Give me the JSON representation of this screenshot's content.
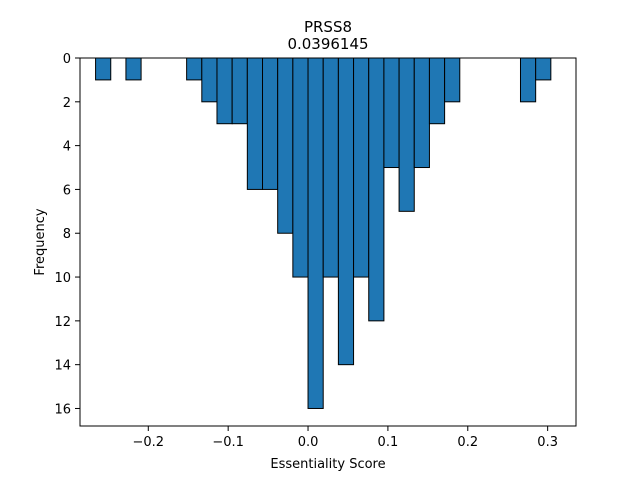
{
  "chart_data": {
    "type": "bar",
    "title": "PRSS8",
    "subtitle": "0.0396145",
    "xlabel": "Essentiality Score",
    "ylabel": "Frequency",
    "xlim": [
      -0.2855,
      0.3355
    ],
    "ylim": [
      16.8,
      0
    ],
    "y_inverted": true,
    "grid": false,
    "bar_color": "#1f77b4",
    "edge_color": "#000000",
    "bin_width": 0.019,
    "bins": [
      {
        "x0": -0.266,
        "value": 1
      },
      {
        "x0": -0.228,
        "value": 1
      },
      {
        "x0": -0.152,
        "value": 1
      },
      {
        "x0": -0.133,
        "value": 2
      },
      {
        "x0": -0.114,
        "value": 3
      },
      {
        "x0": -0.095,
        "value": 3
      },
      {
        "x0": -0.076,
        "value": 6
      },
      {
        "x0": -0.057,
        "value": 6
      },
      {
        "x0": -0.038,
        "value": 8
      },
      {
        "x0": -0.019,
        "value": 10
      },
      {
        "x0": 0.0,
        "value": 16
      },
      {
        "x0": 0.019,
        "value": 10
      },
      {
        "x0": 0.038,
        "value": 14
      },
      {
        "x0": 0.057,
        "value": 10
      },
      {
        "x0": 0.076,
        "value": 12
      },
      {
        "x0": 0.095,
        "value": 5
      },
      {
        "x0": 0.114,
        "value": 7
      },
      {
        "x0": 0.133,
        "value": 5
      },
      {
        "x0": 0.152,
        "value": 3
      },
      {
        "x0": 0.171,
        "value": 2
      },
      {
        "x0": 0.266,
        "value": 2
      },
      {
        "x0": 0.285,
        "value": 1
      }
    ],
    "x_ticks": [
      {
        "value": -0.2,
        "label": "−0.2"
      },
      {
        "value": -0.1,
        "label": "−0.1"
      },
      {
        "value": 0.0,
        "label": "0.0"
      },
      {
        "value": 0.1,
        "label": "0.1"
      },
      {
        "value": 0.2,
        "label": "0.2"
      },
      {
        "value": 0.3,
        "label": "0.3"
      }
    ],
    "y_ticks": [
      {
        "value": 0,
        "label": "0"
      },
      {
        "value": 2,
        "label": "2"
      },
      {
        "value": 4,
        "label": "4"
      },
      {
        "value": 6,
        "label": "6"
      },
      {
        "value": 8,
        "label": "8"
      },
      {
        "value": 10,
        "label": "10"
      },
      {
        "value": 12,
        "label": "12"
      },
      {
        "value": 14,
        "label": "14"
      },
      {
        "value": 16,
        "label": "16"
      }
    ]
  }
}
